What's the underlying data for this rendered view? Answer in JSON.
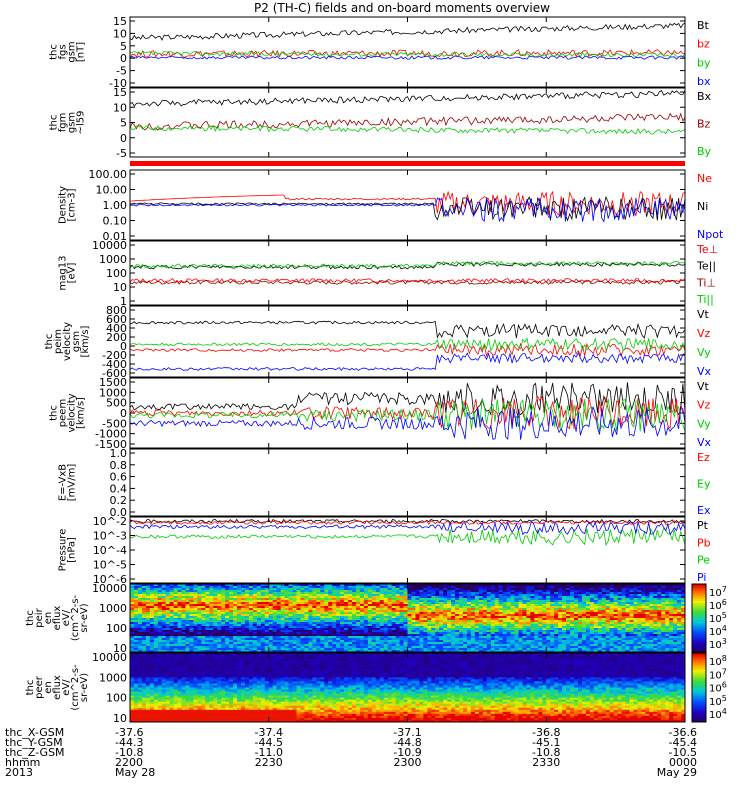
{
  "title": "P2 (TH-C) fields and on-board moments overview",
  "chart_data": [
    {
      "type": "line",
      "name": "fgs",
      "ylabel": [
        "thc",
        "fgs",
        "gsm",
        "[nT]"
      ],
      "yticks": [
        "15",
        "10",
        "5",
        "0",
        "-5",
        "-10"
      ],
      "ylim": [
        -10,
        15
      ],
      "series": [
        {
          "name": "Bt",
          "color": "#000000",
          "level": 7.5,
          "noise": 1.0,
          "ramp": 4.5
        },
        {
          "name": "bz",
          "color": "#ff0000",
          "level": 1.8,
          "noise": 1.2,
          "ramp": 0.4
        },
        {
          "name": "by",
          "color": "#00cc00",
          "level": 2.0,
          "noise": 0.8,
          "ramp": -0.6
        },
        {
          "name": "bx",
          "color": "#0000ff",
          "level": 0.5,
          "noise": 0.6,
          "ramp": 0.0
        }
      ]
    },
    {
      "type": "line",
      "name": "fgm",
      "ylabel": [
        "thc",
        "fgm",
        "gsm",
        "~l59"
      ],
      "yticks": [
        "15",
        "10",
        "5",
        "0",
        "-5"
      ],
      "ylim": [
        -8,
        18
      ],
      "series": [
        {
          "name": "Bx",
          "color": "#000000",
          "level": 12.0,
          "noise": 1.2,
          "ramp": 4.0
        },
        {
          "name": "Bz",
          "color": "#990000",
          "level": 3.5,
          "noise": 1.5,
          "ramp": 3.5
        },
        {
          "name": "By",
          "color": "#00cc00",
          "level": 3.0,
          "noise": 1.0,
          "ramp": -1.5
        }
      ]
    },
    {
      "type": "line",
      "name": "density",
      "ylabel": [
        "Density",
        "[cm-3]"
      ],
      "yticks": [
        "100.00",
        "10.00",
        "1.00",
        "0.10",
        "0.01"
      ],
      "ylim": [
        0.005,
        200
      ],
      "log": true,
      "series": [
        {
          "name": "Ne",
          "color": "#ff0000"
        },
        {
          "name": "Ni",
          "color": "#000000"
        },
        {
          "name": "Npot",
          "color": "#0000ff"
        }
      ]
    },
    {
      "type": "line",
      "name": "temperature",
      "ylabel": [
        "mag13",
        "[eV]"
      ],
      "yticks": [
        "10000",
        "1000",
        "100",
        "10",
        "1"
      ],
      "ylim": [
        1,
        15000
      ],
      "log": true,
      "series": [
        {
          "name": "Te⊥",
          "color": "#ff0000"
        },
        {
          "name": "Te||",
          "color": "#000000"
        },
        {
          "name": "Ti⊥",
          "color": "#990000"
        },
        {
          "name": "Ti||",
          "color": "#00cc00"
        }
      ]
    },
    {
      "type": "line",
      "name": "peim velocity",
      "ylabel": [
        "thc",
        "peim",
        "velocity",
        "gsm",
        "[km/s]"
      ],
      "yticks": [
        "800",
        "600",
        "400",
        "200",
        "0",
        "-200",
        "-400",
        "-600"
      ],
      "ylim": [
        -650,
        850
      ],
      "series": [
        {
          "name": "Vt",
          "color": "#000000"
        },
        {
          "name": "Vz",
          "color": "#ff0000"
        },
        {
          "name": "Vy",
          "color": "#00cc00"
        },
        {
          "name": "Vx",
          "color": "#0000ff"
        }
      ]
    },
    {
      "type": "line",
      "name": "peem velocity",
      "ylabel": [
        "thc",
        "peem",
        "velocity",
        "[km/s]"
      ],
      "yticks": [
        "1500",
        "1000",
        "500",
        "0",
        "-500",
        "-1000",
        "-1500"
      ],
      "ylim": [
        -1700,
        1700
      ],
      "series": [
        {
          "name": "Vt",
          "color": "#000000"
        },
        {
          "name": "Vz",
          "color": "#ff0000"
        },
        {
          "name": "Vy",
          "color": "#00cc00"
        },
        {
          "name": "Vx",
          "color": "#0000ff"
        }
      ]
    },
    {
      "type": "line",
      "name": "efield",
      "ylabel": [
        "E=-VxB",
        "[mV/m]"
      ],
      "yticks": [
        "1.0",
        "0.8",
        "0.6",
        "0.4",
        "0.2",
        "0.0"
      ],
      "ylim": [
        0,
        1
      ],
      "series": [
        {
          "name": "Ez",
          "color": "#ff0000"
        },
        {
          "name": "Ey",
          "color": "#00cc00"
        },
        {
          "name": "Ex",
          "color": "#0000ff"
        }
      ]
    },
    {
      "type": "line",
      "name": "pressure",
      "ylabel": [
        "Pressure",
        "[nPa]"
      ],
      "yticks": [
        "10^-2",
        "10^-3",
        "10^-4",
        "10^-5",
        "10^-6"
      ],
      "ylim": [
        1e-06,
        0.05
      ],
      "log": true,
      "series": [
        {
          "name": "Pt",
          "color": "#000000"
        },
        {
          "name": "Pb",
          "color": "#ff0000"
        },
        {
          "name": "Pe",
          "color": "#00cc00"
        },
        {
          "name": "Pi",
          "color": "#0000ff"
        }
      ]
    },
    {
      "type": "heatmap",
      "name": "peir",
      "ylabel": [
        "thc",
        "peir",
        "en",
        "eflux",
        "eV/",
        "(cm^2-s-",
        "sr-eV)"
      ],
      "yticks": [
        "10000",
        "1000",
        "100",
        "10"
      ],
      "colorbar_ticks": [
        "10^7",
        "10^6",
        "10^5",
        "10^4",
        "10^3"
      ]
    },
    {
      "type": "heatmap",
      "name": "peer",
      "ylabel": [
        "thc",
        "peer",
        "en",
        "eflux",
        "eV/",
        "(cm^2-s-",
        "sr-eV)"
      ],
      "yticks": [
        "10000",
        "1000",
        "100",
        "10"
      ],
      "colorbar_ticks": [
        "10^8",
        "10^7",
        "10^6",
        "10^5",
        "10^4"
      ]
    }
  ],
  "x_axis": {
    "row_labels": [
      "thc_X-GSM",
      "thc_Y-GSM",
      "thc_Z-GSM",
      "hhmm",
      "2013"
    ],
    "ticks": [
      {
        "values": [
          "-37.6",
          "-44.3",
          "-10.8",
          "2200",
          "May 28"
        ]
      },
      {
        "values": [
          "-37.4",
          "-44.5",
          "-11.0",
          "2230",
          ""
        ]
      },
      {
        "values": [
          "-37.1",
          "-44.8",
          "-10.9",
          "2300",
          ""
        ]
      },
      {
        "values": [
          "-36.8",
          "-45.1",
          "-10.8",
          "2330",
          ""
        ]
      },
      {
        "values": [
          "-36.6",
          "-45.4",
          "-10.5",
          "0000",
          "May 29"
        ]
      }
    ]
  }
}
